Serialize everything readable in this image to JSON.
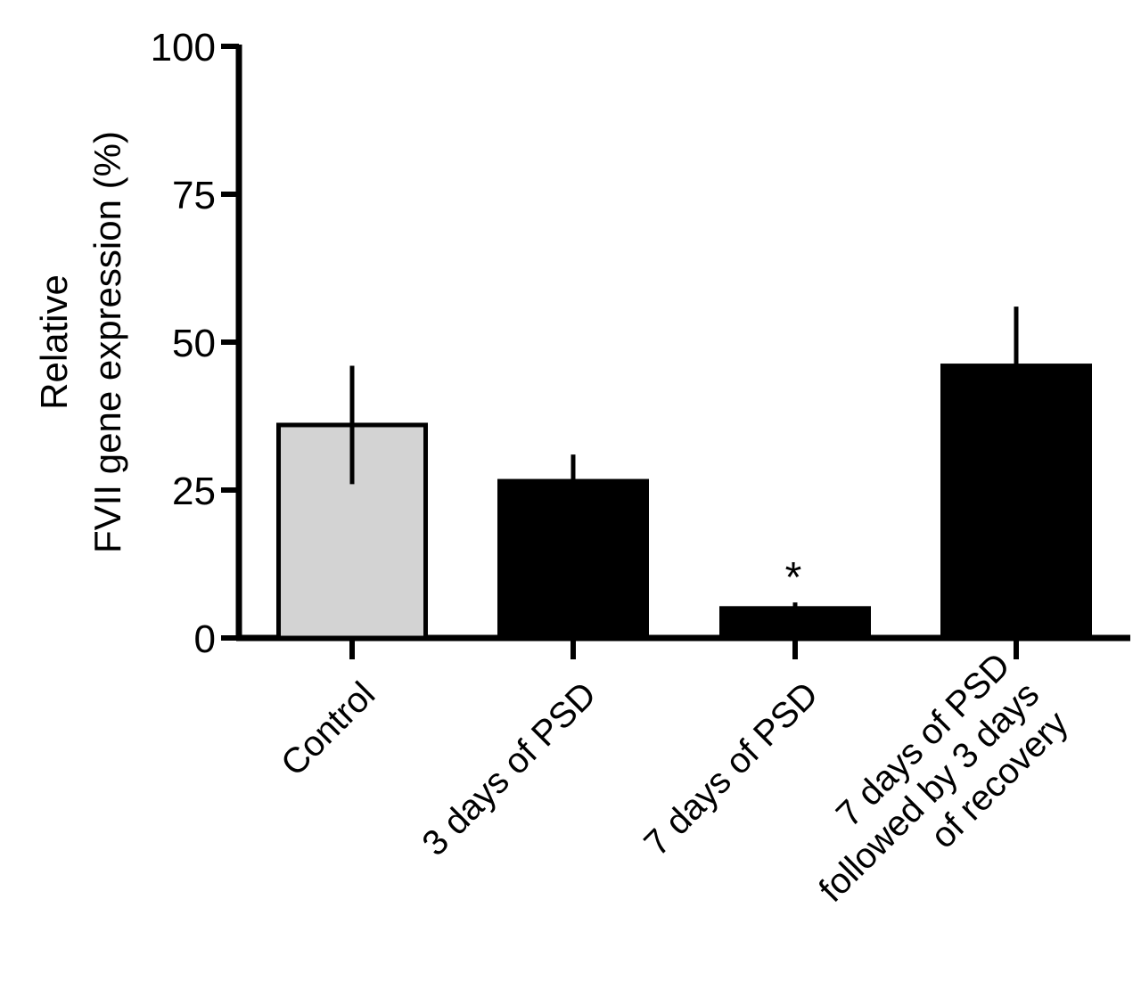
{
  "chart_data": {
    "type": "bar",
    "title": "",
    "ylabel_lines": [
      "Relative",
      "FVII gene expression (%)"
    ],
    "xlabel": "",
    "ylim": [
      0,
      100
    ],
    "yticks": [
      0,
      25,
      50,
      75,
      100
    ],
    "grid": false,
    "categories": [
      [
        "Control"
      ],
      [
        "3 days of PSD"
      ],
      [
        "7 days of PSD"
      ],
      [
        "7 days of PSD",
        "followed by 3 days",
        "of recovery"
      ]
    ],
    "values": [
      36,
      26.5,
      5,
      46
    ],
    "errors": [
      10,
      4.5,
      1,
      10
    ],
    "error_direction": [
      "both",
      "up",
      "up",
      "up"
    ],
    "bar_colors": [
      "#d3d3d3",
      "#000000",
      "#000000",
      "#000000"
    ],
    "annotations": [
      {
        "category_index": 2,
        "text": "*"
      }
    ]
  }
}
